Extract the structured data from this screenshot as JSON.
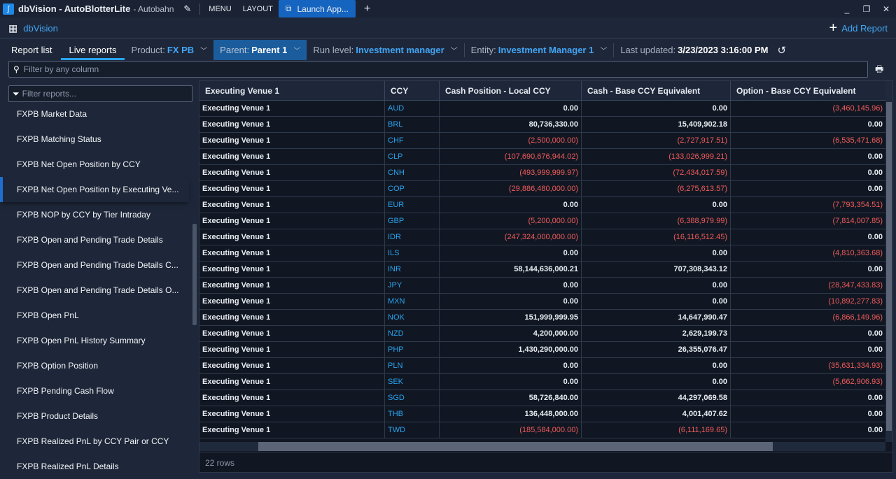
{
  "titlebar": {
    "app": "dbVision - AutoBlotterLite",
    "subtitle": "- Autobahn",
    "menu": "MENU",
    "layout": "LAYOUT",
    "launch": "Launch App...",
    "add_tab": "+"
  },
  "appbar": {
    "title": "dbVision",
    "add_report": "Add Report"
  },
  "tabs": {
    "report_list": "Report list",
    "live_reports": "Live reports"
  },
  "filters": {
    "product": {
      "label": "Product:",
      "value": "FX PB"
    },
    "parent": {
      "label": "Parent:",
      "value": "Parent 1"
    },
    "run_level": {
      "label": "Run level:",
      "value": "Investment manager"
    },
    "entity": {
      "label": "Entity:",
      "value": "Investment Manager 1"
    },
    "last_updated": {
      "label": "Last updated:",
      "value": "3/23/2023 3:16:00 PM"
    }
  },
  "search": {
    "placeholder": "Filter by any column"
  },
  "sidebar": {
    "filter_placeholder": "Filter reports...",
    "selected_index": 3,
    "items": [
      "FXPB Market Data",
      "FXPB Matching Status",
      "FXPB Net Open Position by CCY",
      "FXPB Net Open Position by Executing Ve...",
      "FXPB NOP by CCY by Tier Intraday",
      "FXPB Open and Pending Trade Details",
      "FXPB Open and Pending Trade Details C...",
      "FXPB Open and Pending Trade Details O...",
      "FXPB Open PnL",
      "FXPB Open PnL History Summary",
      "FXPB Option Position",
      "FXPB Pending Cash Flow",
      "FXPB Product Details",
      "FXPB Realized PnL by CCY Pair or CCY",
      "FXPB Realized PnL Details"
    ]
  },
  "table": {
    "columns": [
      "Executing Venue 1",
      "CCY",
      "Cash Position - Local CCY",
      "Cash - Base CCY Equivalent",
      "Option - Base CCY Equivalent"
    ],
    "rows": [
      [
        "Executing Venue 1",
        "AUD",
        "0.00",
        "0.00",
        "(3,460,145.96)"
      ],
      [
        "Executing Venue 1",
        "BRL",
        "80,736,330.00",
        "15,409,902.18",
        "0.00"
      ],
      [
        "Executing Venue 1",
        "CHF",
        "(2,500,000.00)",
        "(2,727,917.51)",
        "(6,535,471.68)"
      ],
      [
        "Executing Venue 1",
        "CLP",
        "(107,690,676,944.02)",
        "(133,026,999.21)",
        "0.00"
      ],
      [
        "Executing Venue 1",
        "CNH",
        "(493,999,999.97)",
        "(72,434,017.59)",
        "0.00"
      ],
      [
        "Executing Venue 1",
        "COP",
        "(29,886,480,000.00)",
        "(6,275,613.57)",
        "0.00"
      ],
      [
        "Executing Venue 1",
        "EUR",
        "0.00",
        "0.00",
        "(7,793,354.51)"
      ],
      [
        "Executing Venue 1",
        "GBP",
        "(5,200,000.00)",
        "(6,388,979.99)",
        "(7,814,007.85)"
      ],
      [
        "Executing Venue 1",
        "IDR",
        "(247,324,000,000.00)",
        "(16,116,512.45)",
        "0.00"
      ],
      [
        "Executing Venue 1",
        "ILS",
        "0.00",
        "0.00",
        "(4,810,363.68)"
      ],
      [
        "Executing Venue 1",
        "INR",
        "58,144,636,000.21",
        "707,308,343.12",
        "0.00"
      ],
      [
        "Executing Venue 1",
        "JPY",
        "0.00",
        "0.00",
        "(28,347,433.83)"
      ],
      [
        "Executing Venue 1",
        "MXN",
        "0.00",
        "0.00",
        "(10,892,277.83)"
      ],
      [
        "Executing Venue 1",
        "NOK",
        "151,999,999.95",
        "14,647,990.47",
        "(6,866,149.96)"
      ],
      [
        "Executing Venue 1",
        "NZD",
        "4,200,000.00",
        "2,629,199.73",
        "0.00"
      ],
      [
        "Executing Venue 1",
        "PHP",
        "1,430,290,000.00",
        "26,355,076.47",
        "0.00"
      ],
      [
        "Executing Venue 1",
        "PLN",
        "0.00",
        "0.00",
        "(35,631,334.93)"
      ],
      [
        "Executing Venue 1",
        "SEK",
        "0.00",
        "0.00",
        "(5,662,906.93)"
      ],
      [
        "Executing Venue 1",
        "SGD",
        "58,726,840.00",
        "44,297,069.58",
        "0.00"
      ],
      [
        "Executing Venue 1",
        "THB",
        "136,448,000.00",
        "4,001,407.62",
        "0.00"
      ],
      [
        "Executing Venue 1",
        "TWD",
        "(185,584,000.00)",
        "(6,111,169.65)",
        "0.00"
      ]
    ],
    "footer": "22 rows"
  },
  "colors": {
    "accent": "#1565c0",
    "link": "#42a5f5",
    "negative": "#ef5b5b",
    "ccy": "#29a3f0"
  }
}
